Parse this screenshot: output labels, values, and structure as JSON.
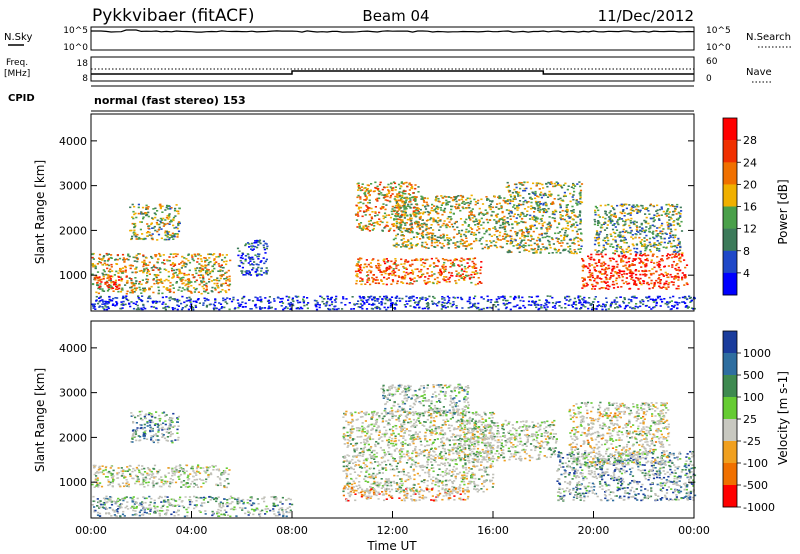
{
  "header": {
    "left_title": "Pykkvibaer (fitACF)",
    "center_title": "Beam 04",
    "right_title": "11/Dec/2012"
  },
  "status_panels": {
    "nsky_label": "N.Sky",
    "nsearch_label": "N.Search",
    "freq_label_line1": "Freq.",
    "freq_label_line2": "[MHz]",
    "nave_label": "Nave",
    "cpid_label": "CPID",
    "cpid_text": "normal (fast stereo) 153",
    "noise_ticks": [
      "10^5",
      "10^0"
    ],
    "freq_ticks": [
      "18",
      "8"
    ],
    "nave_ticks": [
      "60",
      "0"
    ]
  },
  "colors": {
    "power_scale": [
      "#0000ff",
      "#1f48c8",
      "#3c7a5a",
      "#4aa04a",
      "#f0b000",
      "#f07000",
      "#f03000",
      "#ff0000"
    ],
    "velocity_scale": [
      "#1a3c9c",
      "#2e6ea0",
      "#3e8a50",
      "#66cc33",
      "#c8c8c0",
      "#f0a020",
      "#f07000",
      "#ff0000"
    ],
    "gray_scatter": "#c0c0b8"
  },
  "chart_data": [
    {
      "type": "heatmap",
      "name": "power",
      "ylabel": "Slant Range [km]",
      "yticks": [
        1000,
        2000,
        3000,
        4000
      ],
      "ylim": [
        200,
        4600
      ],
      "xlim": [
        0,
        24
      ],
      "colorbar_label": "Power [dB]",
      "colorbar_ticks": [
        "4",
        "8",
        "12",
        "16",
        "20",
        "24",
        "28"
      ],
      "colorbar_range": [
        0,
        32
      ],
      "regions": [
        {
          "t0": 0.0,
          "t1": 5.5,
          "r0": 600,
          "r1": 1500,
          "level": 0.55
        },
        {
          "t0": 0.2,
          "t1": 1.2,
          "r0": 700,
          "r1": 1000,
          "level": 0.9
        },
        {
          "t0": 1.5,
          "t1": 3.5,
          "r0": 1800,
          "r1": 2600,
          "level": 0.45
        },
        {
          "t0": 5.8,
          "t1": 7.0,
          "r0": 1000,
          "r1": 1800,
          "level": 0.2
        },
        {
          "t0": 10.5,
          "t1": 13.0,
          "r0": 2000,
          "r1": 3100,
          "level": 0.6
        },
        {
          "t0": 10.5,
          "t1": 15.5,
          "r0": 800,
          "r1": 1400,
          "level": 0.7
        },
        {
          "t0": 12.0,
          "t1": 16.5,
          "r0": 1600,
          "r1": 2800,
          "level": 0.5
        },
        {
          "t0": 16.5,
          "t1": 19.5,
          "r0": 1500,
          "r1": 3100,
          "level": 0.45
        },
        {
          "t0": 19.5,
          "t1": 23.7,
          "r0": 700,
          "r1": 1500,
          "level": 0.85
        },
        {
          "t0": 20.0,
          "t1": 23.5,
          "r0": 1500,
          "r1": 2600,
          "level": 0.4
        },
        {
          "t0": 0.0,
          "t1": 24.0,
          "r0": 250,
          "r1": 550,
          "level": 0.15
        }
      ]
    },
    {
      "type": "heatmap",
      "name": "velocity",
      "ylabel": "Slant Range [km]",
      "xlabel": "Time UT",
      "yticks": [
        1000,
        2000,
        3000,
        4000
      ],
      "ylim": [
        200,
        4600
      ],
      "xlim": [
        0,
        24
      ],
      "xticks": [
        "00:00",
        "04:00",
        "08:00",
        "12:00",
        "16:00",
        "20:00",
        "00:00"
      ],
      "colorbar_label": "Velocity [m s-1]",
      "colorbar_ticks": [
        "1000",
        "500",
        "100",
        "25",
        "-25",
        "-100",
        "-500",
        "-1000"
      ],
      "regions": [
        {
          "t0": 0.0,
          "t1": 5.5,
          "r0": 900,
          "r1": 1400,
          "level": 0.5
        },
        {
          "t0": 0.0,
          "t1": 8.0,
          "r0": 250,
          "r1": 700,
          "level": 0.3
        },
        {
          "t0": 1.5,
          "t1": 3.5,
          "r0": 1900,
          "r1": 2600,
          "level": 0.2
        },
        {
          "t0": 10.0,
          "t1": 16.0,
          "r0": 800,
          "r1": 2600,
          "level": 0.5
        },
        {
          "t0": 11.5,
          "t1": 15.0,
          "r0": 2500,
          "r1": 3200,
          "level": 0.4
        },
        {
          "t0": 14.5,
          "t1": 18.5,
          "r0": 1500,
          "r1": 2400,
          "level": 0.5
        },
        {
          "t0": 18.5,
          "t1": 24.0,
          "r0": 600,
          "r1": 1700,
          "level": 0.2
        },
        {
          "t0": 19.0,
          "t1": 23.0,
          "r0": 1400,
          "r1": 2800,
          "level": 0.55
        },
        {
          "t0": 10.0,
          "t1": 15.0,
          "r0": 600,
          "r1": 900,
          "level": 0.75
        }
      ]
    }
  ]
}
